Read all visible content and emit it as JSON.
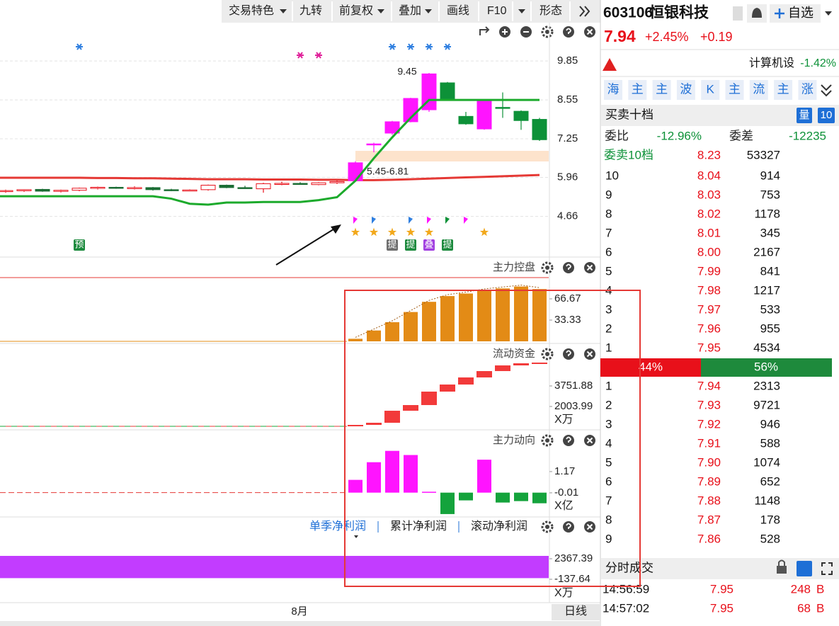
{
  "toolbar": {
    "items": [
      "交易特色",
      "九转",
      "前复权",
      "叠加",
      "画线",
      "F10",
      "形态"
    ]
  },
  "kline": {
    "ylim": [
      3.37,
      11.06
    ],
    "yticks": [
      4.66,
      5.96,
      7.25,
      8.55,
      9.85
    ],
    "candles": [
      {
        "open": 5.5,
        "high": 5.55,
        "low": 5.45,
        "close": 5.52
      },
      {
        "open": 5.52,
        "high": 5.56,
        "low": 5.48,
        "close": 5.55
      },
      {
        "open": 5.56,
        "high": 5.58,
        "low": 5.48,
        "close": 5.5
      },
      {
        "open": 5.5,
        "high": 5.55,
        "low": 5.46,
        "close": 5.53
      },
      {
        "open": 5.53,
        "high": 5.62,
        "low": 5.5,
        "close": 5.6
      },
      {
        "open": 5.6,
        "high": 5.65,
        "low": 5.56,
        "close": 5.63
      },
      {
        "open": 5.63,
        "high": 5.65,
        "low": 5.58,
        "close": 5.6
      },
      {
        "open": 5.6,
        "high": 5.66,
        "low": 5.56,
        "close": 5.62
      },
      {
        "open": 5.62,
        "high": 5.64,
        "low": 5.52,
        "close": 5.55
      },
      {
        "open": 5.55,
        "high": 5.58,
        "low": 5.5,
        "close": 5.53
      },
      {
        "open": 5.53,
        "high": 5.56,
        "low": 5.5,
        "close": 5.54
      },
      {
        "open": 5.55,
        "high": 5.72,
        "low": 5.52,
        "close": 5.7
      },
      {
        "open": 5.7,
        "high": 5.72,
        "low": 5.6,
        "close": 5.62
      },
      {
        "open": 5.62,
        "high": 5.68,
        "low": 5.58,
        "close": 5.6
      },
      {
        "open": 5.58,
        "high": 5.78,
        "low": 5.45,
        "close": 5.75
      },
      {
        "open": 5.75,
        "high": 5.82,
        "low": 5.7,
        "close": 5.76
      },
      {
        "open": 5.76,
        "high": 5.8,
        "low": 5.72,
        "close": 5.74
      },
      {
        "open": 5.72,
        "high": 5.8,
        "low": 5.7,
        "close": 5.78
      },
      {
        "open": 5.78,
        "high": 5.85,
        "low": 5.74,
        "close": 5.82
      },
      {
        "open": 5.85,
        "high": 6.5,
        "low": 5.82,
        "close": 6.45
      },
      {
        "open": 7.05,
        "high": 7.12,
        "low": 6.8,
        "close": 7.08
      },
      {
        "open": 7.44,
        "high": 7.85,
        "low": 7.38,
        "close": 7.82
      },
      {
        "open": 7.82,
        "high": 8.62,
        "low": 7.8,
        "close": 8.6
      },
      {
        "open": 8.22,
        "high": 9.45,
        "low": 8.15,
        "close": 9.42
      },
      {
        "open": 9.12,
        "high": 9.15,
        "low": 8.55,
        "close": 8.55
      },
      {
        "open": 8.0,
        "high": 8.15,
        "low": 7.72,
        "close": 7.75
      },
      {
        "open": 7.58,
        "high": 8.55,
        "low": 7.55,
        "close": 8.55
      },
      {
        "open": 8.3,
        "high": 8.8,
        "low": 7.95,
        "close": 8.28
      },
      {
        "open": 8.17,
        "high": 8.2,
        "low": 7.55,
        "close": 7.86
      },
      {
        "open": 7.9,
        "high": 7.95,
        "low": 7.18,
        "close": 7.22
      }
    ],
    "ma_red": [
      5.95,
      5.95,
      5.95,
      5.95,
      5.95,
      5.94,
      5.94,
      5.93,
      5.93,
      5.92,
      5.91,
      5.9,
      5.9,
      5.9,
      5.89,
      5.89,
      5.89,
      5.88,
      5.88,
      5.87,
      5.87,
      5.88,
      5.9,
      5.92,
      5.94,
      5.96,
      5.98,
      6.0,
      6.02,
      6.04
    ],
    "ma_green": [
      5.33,
      5.33,
      5.33,
      5.33,
      5.33,
      5.33,
      5.33,
      5.33,
      5.33,
      5.25,
      5.08,
      5.05,
      5.12,
      5.12,
      5.14,
      5.14,
      5.14,
      5.2,
      5.3,
      5.85,
      6.6,
      7.3,
      7.95,
      8.55,
      8.55,
      8.55,
      8.55,
      8.55,
      8.55,
      8.55
    ],
    "range_label": "5.45-6.81",
    "tags": [
      "预",
      "提",
      "提",
      "叠",
      "提"
    ]
  },
  "panels": [
    {
      "title": "主力控盘",
      "type": "bar",
      "ylim": [
        -3.33,
        130
      ],
      "yticks": [
        33.33,
        66.67
      ],
      "ref_line": 100,
      "values": [
        4,
        17,
        30,
        46,
        62,
        71,
        75,
        80,
        83,
        86,
        82
      ]
    },
    {
      "title": "流动资金",
      "type": "waterfall",
      "unit": "X万",
      "ylim": [
        136,
        7248
      ],
      "yticks": [
        2003.99,
        3751.88
      ],
      "start": 316,
      "values": [
        437,
        618,
        1642,
        2124,
        3270,
        3872,
        4475,
        5017,
        5500,
        5680,
        5740
      ]
    },
    {
      "title": "主力动向",
      "type": "bar",
      "unit": "X亿",
      "ylim": [
        -1.35,
        3.37
      ],
      "yticks": [
        -0.01,
        1.17
      ],
      "values": [
        0.71,
        1.69,
        2.32,
        2.09,
        0.05,
        -1.19,
        -0.43,
        1.83,
        -0.55,
        -0.47,
        -0.59
      ]
    },
    {
      "tabs": [
        "单季净利润",
        "累计净利润",
        "滚动净利润"
      ],
      "type": "bar",
      "unit": "X万",
      "ylim": [
        -2902,
        5304
      ],
      "yticks": [
        -137.64,
        2367.39
      ],
      "values": [
        2713
      ]
    }
  ],
  "x_label": "8月",
  "period_button": "日线",
  "quote": {
    "code": "603106",
    "name": "恒银科技",
    "watch": "自选",
    "price": "7.94",
    "pct": "+2.45%",
    "change": "+0.19",
    "sector": "计算机设",
    "sector_pct": "-1.42%"
  },
  "tools": [
    "海",
    "主",
    "主",
    "波",
    "K",
    "主",
    "流",
    "主",
    "涨"
  ],
  "book": {
    "title": "买卖十档",
    "vol_button": "量",
    "level_button": "10",
    "ratio_label": "委比",
    "ratio": "-12.96%",
    "diff_label": "委差",
    "diff": "-12235",
    "total_label": "委卖10档",
    "total_price": "8.23",
    "total_vol": "53327",
    "asks": [
      [
        "10",
        "8.04",
        "914"
      ],
      [
        "9",
        "8.03",
        "753"
      ],
      [
        "8",
        "8.02",
        "1178"
      ],
      [
        "7",
        "8.01",
        "345"
      ],
      [
        "6",
        "8.00",
        "2167"
      ],
      [
        "5",
        "7.99",
        "841"
      ],
      [
        "4",
        "7.98",
        "1217"
      ],
      [
        "3",
        "7.97",
        "533"
      ],
      [
        "2",
        "7.96",
        "955"
      ],
      [
        "1",
        "7.95",
        "4534"
      ]
    ],
    "buy_pct": "44%",
    "sell_pct": "56%",
    "bids": [
      [
        "1",
        "7.94",
        "2313"
      ],
      [
        "2",
        "7.93",
        "9721"
      ],
      [
        "3",
        "7.92",
        "946"
      ],
      [
        "4",
        "7.91",
        "588"
      ],
      [
        "5",
        "7.90",
        "1074"
      ],
      [
        "6",
        "7.89",
        "652"
      ],
      [
        "7",
        "7.88",
        "1148"
      ],
      [
        "8",
        "7.87",
        "178"
      ],
      [
        "9",
        "7.86",
        "528"
      ]
    ]
  },
  "trades": {
    "title": "分时成交",
    "rows": [
      [
        "14:56:59",
        "7.95",
        "248",
        "B"
      ],
      [
        "14:57:02",
        "7.95",
        "68",
        "B"
      ]
    ]
  }
}
